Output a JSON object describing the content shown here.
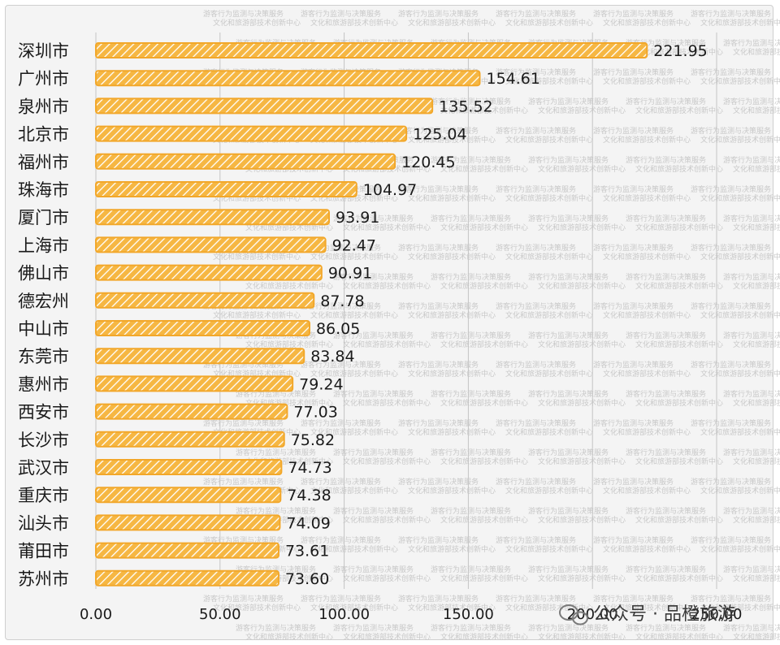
{
  "chart_data": {
    "type": "bar",
    "orientation": "horizontal",
    "categories": [
      "深圳市",
      "广州市",
      "泉州市",
      "北京市",
      "福州市",
      "珠海市",
      "厦门市",
      "上海市",
      "佛山市",
      "德宏州",
      "中山市",
      "东莞市",
      "惠州市",
      "西安市",
      "长沙市",
      "武汉市",
      "重庆市",
      "汕头市",
      "莆田市",
      "苏州市"
    ],
    "values": [
      221.95,
      154.61,
      135.52,
      125.04,
      120.45,
      104.97,
      93.91,
      92.47,
      90.91,
      87.78,
      86.05,
      83.84,
      79.24,
      77.03,
      75.82,
      74.73,
      74.38,
      74.09,
      73.61,
      73.6
    ],
    "value_labels": [
      "221.95",
      "154.61",
      "135.52",
      "125.04",
      "120.45",
      "104.97",
      "93.91",
      "92.47",
      "90.91",
      "87.78",
      "86.05",
      "83.84",
      "79.24",
      "77.03",
      "75.82",
      "74.73",
      "74.38",
      "74.09",
      "73.61",
      "73.60"
    ],
    "x_ticks": [
      0,
      50,
      100,
      150,
      200,
      250
    ],
    "x_tick_labels": [
      "0.00",
      "50.00",
      "100.00",
      "150.00",
      "200.00",
      "250.00"
    ],
    "xlim": [
      0,
      250
    ],
    "grid": "vertical",
    "bar_color": "#f2a72a",
    "bar_pattern": "diagonal-hatch",
    "watermark_lines": [
      "游客行为监测与决策服务",
      "文化和旅游部技术创新中心"
    ],
    "brand_text": "公众号 · 品橙旅游"
  }
}
